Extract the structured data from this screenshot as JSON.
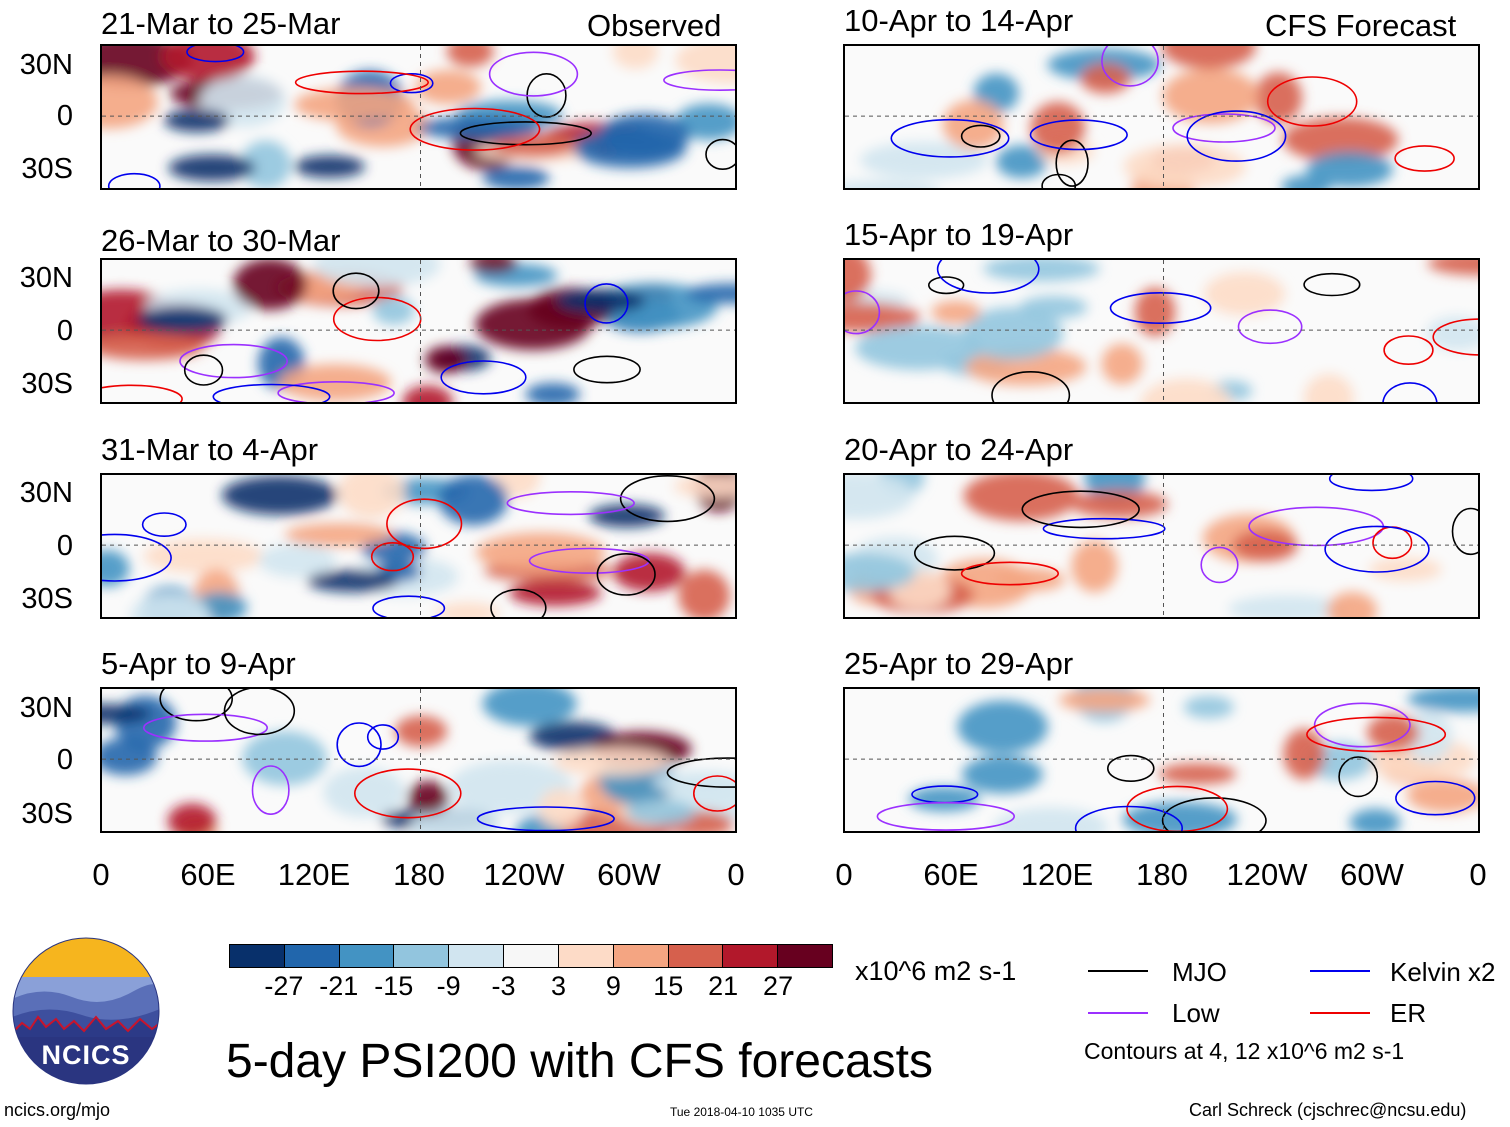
{
  "header": {
    "left_label": "Observed",
    "right_label": "CFS Forecast"
  },
  "panels": [
    {
      "id": "obs-1",
      "title": "21-Mar to 25-Mar"
    },
    {
      "id": "obs-2",
      "title": "26-Mar to 30-Mar"
    },
    {
      "id": "obs-3",
      "title": "31-Mar to 4-Apr"
    },
    {
      "id": "obs-4",
      "title": "5-Apr to 9-Apr"
    },
    {
      "id": "fc-1",
      "title": "10-Apr to 14-Apr"
    },
    {
      "id": "fc-2",
      "title": "15-Apr to 19-Apr"
    },
    {
      "id": "fc-3",
      "title": "20-Apr to 24-Apr"
    },
    {
      "id": "fc-4",
      "title": "25-Apr to 29-Apr"
    }
  ],
  "lat_labels": [
    "30N",
    "0",
    "30S"
  ],
  "lon_labels": [
    "0",
    "60E",
    "120E",
    "180",
    "120W",
    "60W",
    "0"
  ],
  "colorbar": {
    "colors": [
      "#08306b",
      "#2166ac",
      "#4393c3",
      "#92c5de",
      "#d1e5f0",
      "#f7f7f7",
      "#fddbc7",
      "#f4a582",
      "#d6604d",
      "#b2182b",
      "#67001f"
    ],
    "labels": [
      "-27",
      "-21",
      "-15",
      "-9",
      "-3",
      "3",
      "9",
      "15",
      "21",
      "27"
    ],
    "units": "x10^6 m2 s-1"
  },
  "legend": {
    "items": [
      {
        "label": "MJO",
        "color": "#000000"
      },
      {
        "label": "Kelvin x2",
        "color": "#0000ee"
      },
      {
        "label": "Low",
        "color": "#9b30ff"
      },
      {
        "label": "ER",
        "color": "#ee0000"
      }
    ],
    "note": "Contours at 4, 12 x10^6 m2 s-1"
  },
  "title": "5-day PSI200 with CFS forecasts",
  "logo_text": "NCICS",
  "footer": {
    "url": "ncics.org/mjo",
    "timestamp": "Tue 2018-04-10 1035 UTC",
    "author": "Carl Schreck (cjschrec@ncsu.edu)"
  }
}
